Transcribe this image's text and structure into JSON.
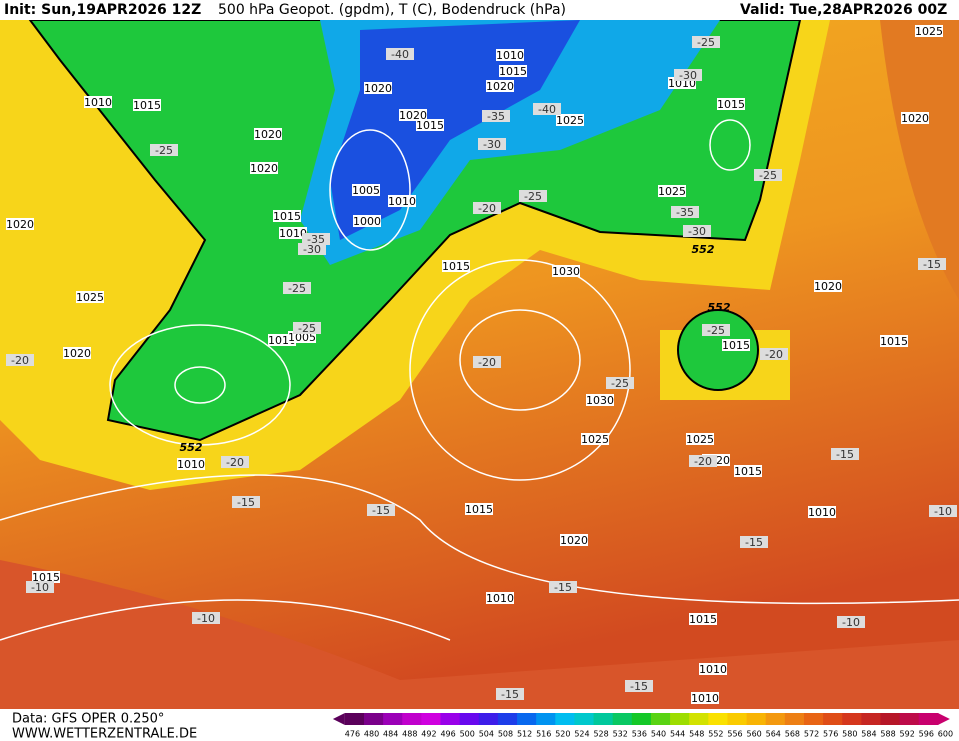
{
  "header": {
    "init": "Init: Sun,19APR2026 12Z",
    "title": "500 hPa Geopot. (gpdm), T (C), Bodendruck (hPa)",
    "valid": "Valid: Tue,28APR2026 00Z"
  },
  "footer": {
    "data": "Data: GFS OPER 0.250°",
    "site": "WWW.WETTERZENTRALE.DE"
  },
  "colorbar": {
    "labels": [
      476,
      480,
      484,
      488,
      492,
      496,
      500,
      504,
      508,
      512,
      516,
      520,
      524,
      528,
      532,
      536,
      540,
      544,
      548,
      552,
      556,
      560,
      564,
      568,
      572,
      576,
      580,
      584,
      588,
      592,
      596,
      600
    ]
  },
  "map": {
    "pressure_labels": [
      "1025",
      "1010",
      "1015",
      "1020",
      "1010",
      "1015",
      "1025",
      "1020",
      "1020",
      "1015",
      "1010",
      "1015",
      "1020",
      "1020",
      "1020",
      "1020",
      "1025",
      "1005",
      "1010",
      "1000",
      "1015",
      "1010",
      "1015",
      "1030",
      "1025",
      "1020",
      "1020",
      "1015",
      "1010",
      "1005",
      "1015",
      "1030",
      "1025",
      "1025",
      "1020",
      "1015",
      "1010",
      "1015",
      "1010",
      "1020",
      "1015",
      "1010",
      "1015",
      "1010",
      "1010"
    ],
    "temperature_labels": [
      "-40",
      "-25",
      "-30",
      "-35",
      "-40",
      "-30",
      "-25",
      "-25",
      "-35",
      "-30",
      "-20",
      "-25",
      "-35",
      "-30",
      "-25",
      "-25",
      "-20",
      "-20",
      "-25",
      "-20",
      "-25",
      "-15",
      "-20",
      "-15",
      "-20",
      "-15",
      "-15",
      "-15",
      "-10",
      "-15",
      "-10",
      "-10",
      "-15",
      "-15",
      "-10"
    ],
    "geopotential_labels": [
      "552",
      "552",
      "552"
    ]
  }
}
